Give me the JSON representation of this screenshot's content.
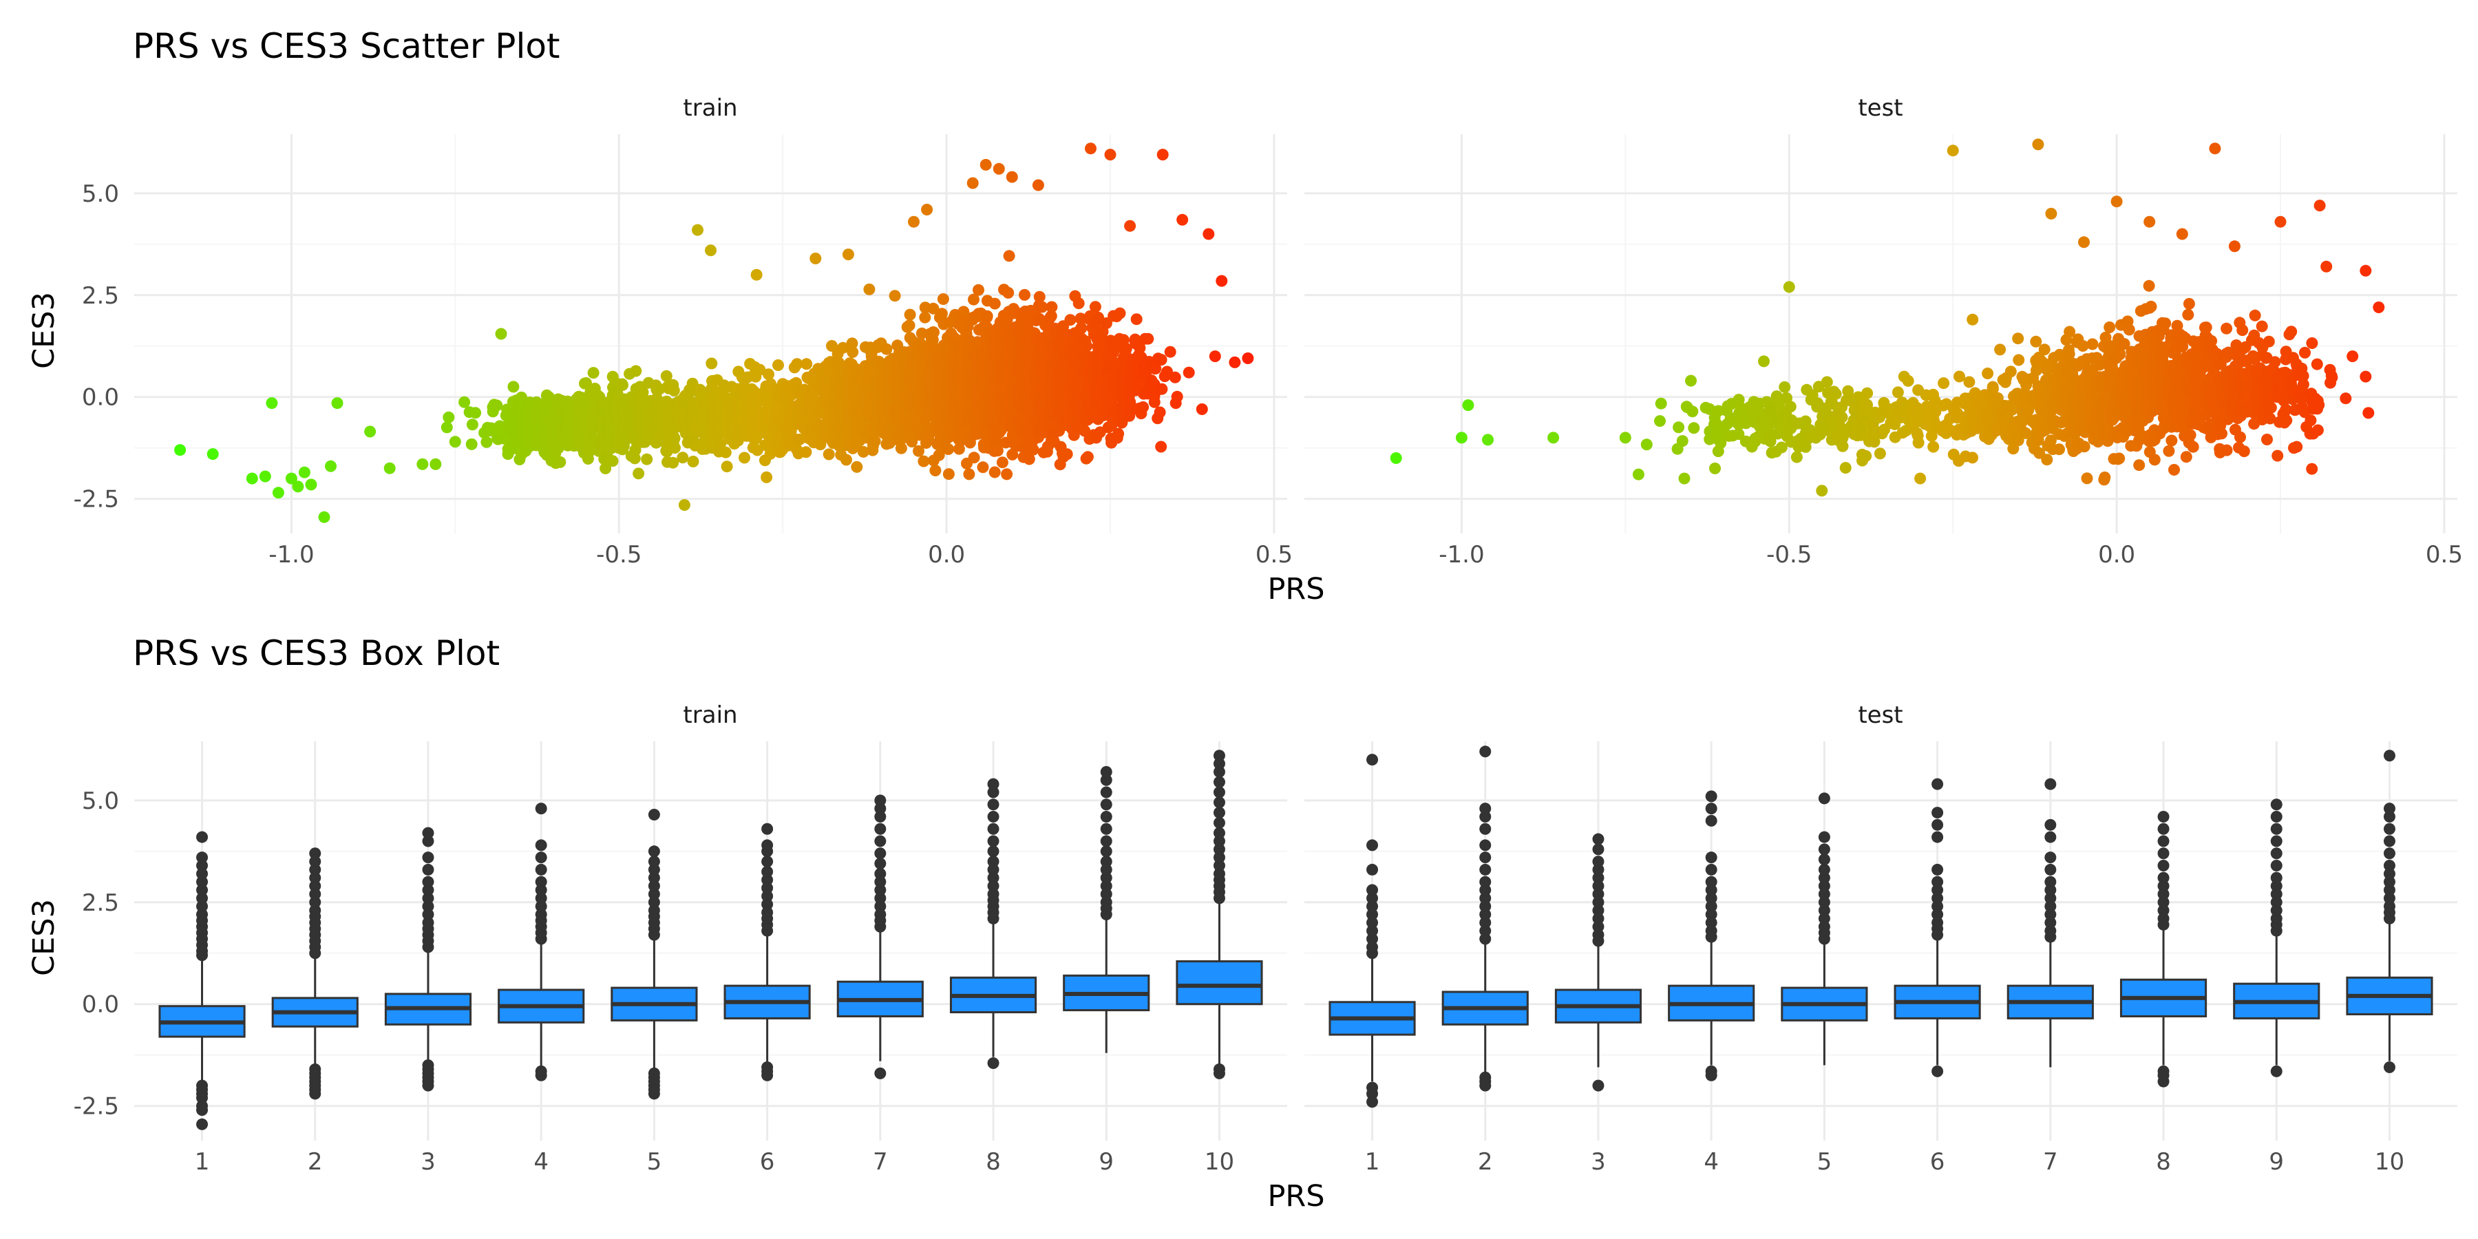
{
  "colors": {
    "low": "#3cff00",
    "mid": "#d4a800",
    "high": "#ff1e00",
    "box_fill": "#1e90ff",
    "box_line": "#333333",
    "grid_major": "#ebebeb",
    "grid_minor": "#f5f5f5"
  },
  "chart_data": [
    {
      "type": "scatter",
      "title": "PRS vs CES3 Scatter Plot",
      "xlabel": "PRS",
      "ylabel": "CES3",
      "facets": [
        "train",
        "test"
      ],
      "xlim": [
        -1.24,
        0.52
      ],
      "ylim": [
        -3.35,
        6.45
      ],
      "xticks": [
        -1.0,
        -0.5,
        0.0,
        0.5
      ],
      "xtick_labels": [
        "-1.0",
        "-0.5",
        "0.0",
        "0.5"
      ],
      "yticks": [
        -2.5,
        0.0,
        2.5,
        5.0
      ],
      "ytick_labels": [
        "-2.5",
        "0.0",
        "2.5",
        "5.0"
      ],
      "grid": true,
      "color_scale": "continuous by PRS (green to red)",
      "point_density": {
        "train": [
          {
            "x": -0.6,
            "y": -0.7,
            "sx": 0.05,
            "sy": 0.35,
            "n": 420
          },
          {
            "x": -0.45,
            "y": -0.55,
            "sx": 0.06,
            "sy": 0.4,
            "n": 420
          },
          {
            "x": -0.28,
            "y": -0.45,
            "sx": 0.07,
            "sy": 0.45,
            "n": 450
          },
          {
            "x": -0.12,
            "y": -0.1,
            "sx": 0.05,
            "sy": 0.55,
            "n": 500
          },
          {
            "x": 0.0,
            "y": 0.25,
            "sx": 0.05,
            "sy": 0.75,
            "n": 650
          },
          {
            "x": 0.1,
            "y": 0.45,
            "sx": 0.05,
            "sy": 0.85,
            "n": 700
          },
          {
            "x": 0.2,
            "y": 0.4,
            "sx": 0.045,
            "sy": 0.75,
            "n": 450
          },
          {
            "x": 0.27,
            "y": 0.5,
            "sx": 0.03,
            "sy": 0.6,
            "n": 120
          }
        ],
        "test": [
          {
            "x": -0.55,
            "y": -0.7,
            "sx": 0.06,
            "sy": 0.35,
            "n": 110
          },
          {
            "x": -0.4,
            "y": -0.55,
            "sx": 0.07,
            "sy": 0.4,
            "n": 140
          },
          {
            "x": -0.2,
            "y": -0.45,
            "sx": 0.06,
            "sy": 0.45,
            "n": 170
          },
          {
            "x": -0.05,
            "y": 0.0,
            "sx": 0.05,
            "sy": 0.65,
            "n": 340
          },
          {
            "x": 0.07,
            "y": 0.25,
            "sx": 0.05,
            "sy": 0.75,
            "n": 380
          },
          {
            "x": 0.17,
            "y": 0.2,
            "sx": 0.05,
            "sy": 0.65,
            "n": 260
          },
          {
            "x": 0.26,
            "y": 0.1,
            "sx": 0.035,
            "sy": 0.55,
            "n": 90
          }
        ]
      },
      "extreme_points": {
        "train": [
          [
            -1.17,
            -1.3
          ],
          [
            -1.12,
            -1.4
          ],
          [
            -1.06,
            -2.0
          ],
          [
            -1.04,
            -1.95
          ],
          [
            -1.02,
            -2.35
          ],
          [
            -1.0,
            -2.0
          ],
          [
            -0.99,
            -2.2
          ],
          [
            -0.97,
            -2.15
          ],
          [
            -0.98,
            -1.85
          ],
          [
            -1.03,
            -0.15
          ],
          [
            -0.93,
            -0.15
          ],
          [
            -0.94,
            -1.7
          ],
          [
            -0.95,
            -2.95
          ],
          [
            -0.88,
            -0.85
          ],
          [
            -0.85,
            -1.75
          ],
          [
            -0.8,
            -1.65
          ],
          [
            -0.78,
            -1.65
          ],
          [
            -0.76,
            -0.5
          ],
          [
            -0.75,
            -1.1
          ],
          [
            -0.68,
            1.55
          ],
          [
            -0.42,
            -1.2
          ],
          [
            -0.4,
            -2.65
          ],
          [
            -0.38,
            4.1
          ],
          [
            -0.36,
            3.6
          ],
          [
            -0.29,
            3.0
          ],
          [
            -0.2,
            3.4
          ],
          [
            -0.15,
            3.5
          ],
          [
            -0.05,
            4.3
          ],
          [
            -0.03,
            4.6
          ],
          [
            0.04,
            5.25
          ],
          [
            0.06,
            5.7
          ],
          [
            0.08,
            5.6
          ],
          [
            0.1,
            5.4
          ],
          [
            0.14,
            5.2
          ],
          [
            0.22,
            6.1
          ],
          [
            0.25,
            5.95
          ],
          [
            0.28,
            4.2
          ],
          [
            0.33,
            5.95
          ],
          [
            0.36,
            4.35
          ],
          [
            0.4,
            4.0
          ],
          [
            0.42,
            2.85
          ],
          [
            0.41,
            1.0
          ],
          [
            0.44,
            0.85
          ],
          [
            0.46,
            0.95
          ],
          [
            0.37,
            0.6
          ],
          [
            0.39,
            -0.3
          ],
          [
            0.35,
            -0.15
          ],
          [
            0.3,
            -0.25
          ]
        ],
        "test": [
          [
            -1.1,
            -1.5
          ],
          [
            -1.0,
            -1.0
          ],
          [
            -0.99,
            -0.2
          ],
          [
            -0.96,
            -1.05
          ],
          [
            -0.86,
            -1.0
          ],
          [
            -0.75,
            -1.0
          ],
          [
            -0.73,
            -1.9
          ],
          [
            -0.66,
            -2.0
          ],
          [
            -0.65,
            0.4
          ],
          [
            -0.5,
            2.7
          ],
          [
            -0.45,
            -2.3
          ],
          [
            -0.3,
            -2.0
          ],
          [
            -0.25,
            6.05
          ],
          [
            -0.22,
            1.9
          ],
          [
            -0.12,
            6.2
          ],
          [
            -0.1,
            4.5
          ],
          [
            -0.05,
            3.8
          ],
          [
            0.0,
            4.8
          ],
          [
            0.05,
            4.3
          ],
          [
            0.1,
            4.0
          ],
          [
            0.15,
            6.1
          ],
          [
            0.18,
            3.7
          ],
          [
            0.25,
            4.3
          ],
          [
            0.31,
            4.7
          ],
          [
            0.32,
            3.2
          ],
          [
            0.38,
            3.1
          ],
          [
            0.4,
            2.2
          ],
          [
            0.36,
            1.0
          ],
          [
            0.38,
            0.5
          ],
          [
            0.3,
            -0.9
          ]
        ]
      }
    },
    {
      "type": "box",
      "title": "PRS vs CES3 Box Plot",
      "xlabel": "PRS",
      "ylabel": "CES3",
      "facets": [
        "train",
        "test"
      ],
      "categories": [
        "1",
        "2",
        "3",
        "4",
        "5",
        "6",
        "7",
        "8",
        "9",
        "10"
      ],
      "ylim": [
        -3.35,
        6.45
      ],
      "yticks": [
        -2.5,
        0.0,
        2.5,
        5.0
      ],
      "ytick_labels": [
        "-2.5",
        "0.0",
        "2.5",
        "5.0"
      ],
      "grid": true,
      "boxes": {
        "train": [
          {
            "q1": -0.8,
            "median": -0.45,
            "q3": -0.05,
            "whislo": -1.9,
            "whishi": 1.1,
            "out_lo": [
              -2.0,
              -2.1,
              -2.2,
              -2.3,
              -2.5,
              -2.6,
              -2.95
            ],
            "out_hi": [
              1.2,
              1.3,
              1.45,
              1.6,
              1.75,
              1.9,
              2.05,
              2.2,
              2.4,
              2.6,
              2.8,
              3.0,
              3.2,
              3.4,
              3.6,
              4.1
            ]
          },
          {
            "q1": -0.55,
            "median": -0.2,
            "q3": 0.15,
            "whislo": -1.5,
            "whishi": 1.15,
            "out_lo": [
              -1.6,
              -1.7,
              -1.8,
              -1.9,
              -2.0,
              -2.1,
              -2.2
            ],
            "out_hi": [
              1.25,
              1.4,
              1.55,
              1.7,
              1.85,
              2.0,
              2.15,
              2.3,
              2.5,
              2.7,
              2.9,
              3.1,
              3.3,
              3.5,
              3.7
            ]
          },
          {
            "q1": -0.5,
            "median": -0.1,
            "q3": 0.25,
            "whislo": -1.4,
            "whishi": 1.3,
            "out_lo": [
              -1.5,
              -1.6,
              -1.7,
              -1.8,
              -1.9,
              -2.0
            ],
            "out_hi": [
              1.4,
              1.55,
              1.7,
              1.85,
              2.0,
              2.2,
              2.4,
              2.6,
              2.8,
              3.0,
              3.3,
              3.6,
              4.0,
              4.2
            ]
          },
          {
            "q1": -0.45,
            "median": -0.05,
            "q3": 0.35,
            "whislo": -1.55,
            "whishi": 1.5,
            "out_lo": [
              -1.65,
              -1.75
            ],
            "out_hi": [
              1.6,
              1.75,
              1.9,
              2.05,
              2.2,
              2.4,
              2.6,
              2.8,
              3.0,
              3.3,
              3.6,
              3.9,
              4.8
            ]
          },
          {
            "q1": -0.4,
            "median": 0.0,
            "q3": 0.4,
            "whislo": -1.6,
            "whishi": 1.6,
            "out_lo": [
              -1.7,
              -1.8,
              -1.9,
              -2.0,
              -2.1,
              -2.2
            ],
            "out_hi": [
              1.7,
              1.85,
              2.0,
              2.15,
              2.3,
              2.5,
              2.7,
              2.9,
              3.1,
              3.3,
              3.5,
              3.75,
              4.65
            ]
          },
          {
            "q1": -0.35,
            "median": 0.05,
            "q3": 0.45,
            "whislo": -1.45,
            "whishi": 1.7,
            "out_lo": [
              -1.55,
              -1.65,
              -1.75
            ],
            "out_hi": [
              1.8,
              1.95,
              2.1,
              2.25,
              2.45,
              2.65,
              2.85,
              3.05,
              3.25,
              3.5,
              3.75,
              3.9,
              4.3
            ]
          },
          {
            "q1": -0.3,
            "median": 0.1,
            "q3": 0.55,
            "whislo": -1.4,
            "whishi": 1.8,
            "out_lo": [
              -1.7
            ],
            "out_hi": [
              1.9,
              2.05,
              2.2,
              2.4,
              2.6,
              2.8,
              3.0,
              3.2,
              3.45,
              3.7,
              4.0,
              4.3,
              4.6,
              4.8,
              5.0
            ]
          },
          {
            "q1": -0.2,
            "median": 0.2,
            "q3": 0.65,
            "whislo": -1.3,
            "whishi": 2.0,
            "out_lo": [
              -1.45
            ],
            "out_hi": [
              2.1,
              2.25,
              2.4,
              2.55,
              2.7,
              2.9,
              3.1,
              3.3,
              3.5,
              3.75,
              4.0,
              4.3,
              4.6,
              4.9,
              5.2,
              5.4
            ]
          },
          {
            "q1": -0.15,
            "median": 0.25,
            "q3": 0.7,
            "whislo": -1.2,
            "whishi": 2.1,
            "out_lo": [],
            "out_hi": [
              2.2,
              2.35,
              2.5,
              2.7,
              2.9,
              3.1,
              3.3,
              3.5,
              3.75,
              4.0,
              4.3,
              4.6,
              4.9,
              5.2,
              5.5,
              5.7
            ]
          },
          {
            "q1": 0.0,
            "median": 0.45,
            "q3": 1.05,
            "whislo": -1.5,
            "whishi": 2.5,
            "out_lo": [
              -1.6,
              -1.7
            ],
            "out_hi": [
              2.6,
              2.75,
              2.9,
              3.05,
              3.2,
              3.4,
              3.6,
              3.8,
              4.0,
              4.2,
              4.45,
              4.7,
              4.95,
              5.2,
              5.45,
              5.7,
              5.9,
              6.1
            ]
          }
        ],
        "test": [
          {
            "q1": -0.75,
            "median": -0.35,
            "q3": 0.05,
            "whislo": -1.9,
            "whishi": 1.15,
            "out_lo": [
              -2.05,
              -2.2,
              -2.4
            ],
            "out_hi": [
              1.25,
              1.4,
              1.6,
              1.8,
              2.0,
              2.2,
              2.4,
              2.6,
              2.8,
              3.3,
              3.9,
              6.0
            ]
          },
          {
            "q1": -0.5,
            "median": -0.1,
            "q3": 0.3,
            "whislo": -1.7,
            "whishi": 1.5,
            "out_lo": [
              -1.8,
              -1.9,
              -2.0
            ],
            "out_hi": [
              1.6,
              1.8,
              2.0,
              2.2,
              2.4,
              2.6,
              2.8,
              3.0,
              3.3,
              3.6,
              3.9,
              4.3,
              4.6,
              4.8,
              6.2
            ]
          },
          {
            "q1": -0.45,
            "median": -0.05,
            "q3": 0.35,
            "whislo": -1.55,
            "whishi": 1.45,
            "out_lo": [
              -2.0
            ],
            "out_hi": [
              1.55,
              1.7,
              1.9,
              2.1,
              2.3,
              2.5,
              2.7,
              2.9,
              3.1,
              3.3,
              3.5,
              3.8,
              4.05
            ]
          },
          {
            "q1": -0.4,
            "median": 0.0,
            "q3": 0.45,
            "whislo": -1.5,
            "whishi": 1.55,
            "out_lo": [
              -1.65,
              -1.75
            ],
            "out_hi": [
              1.65,
              1.8,
              2.0,
              2.2,
              2.4,
              2.6,
              2.8,
              3.0,
              3.3,
              3.6,
              4.5,
              4.8,
              5.1
            ]
          },
          {
            "q1": -0.4,
            "median": 0.0,
            "q3": 0.4,
            "whislo": -1.5,
            "whishi": 1.5,
            "out_lo": [],
            "out_hi": [
              1.6,
              1.75,
              1.9,
              2.1,
              2.3,
              2.5,
              2.7,
              2.9,
              3.1,
              3.3,
              3.55,
              3.8,
              4.1,
              5.05
            ]
          },
          {
            "q1": -0.35,
            "median": 0.05,
            "q3": 0.45,
            "whislo": -1.5,
            "whishi": 1.6,
            "out_lo": [
              -1.65
            ],
            "out_hi": [
              1.7,
              1.85,
              2.0,
              2.2,
              2.4,
              2.6,
              2.8,
              3.0,
              3.3,
              4.1,
              4.4,
              4.7,
              5.4
            ]
          },
          {
            "q1": -0.35,
            "median": 0.05,
            "q3": 0.45,
            "whislo": -1.55,
            "whishi": 1.55,
            "out_lo": [],
            "out_hi": [
              1.65,
              1.8,
              2.0,
              2.2,
              2.4,
              2.6,
              2.8,
              3.0,
              3.3,
              3.6,
              4.1,
              4.4,
              5.4
            ]
          },
          {
            "q1": -0.3,
            "median": 0.15,
            "q3": 0.6,
            "whislo": -1.5,
            "whishi": 1.85,
            "out_lo": [
              -1.65,
              -1.75,
              -1.9
            ],
            "out_hi": [
              1.95,
              2.1,
              2.3,
              2.5,
              2.7,
              2.9,
              3.1,
              3.4,
              3.7,
              4.0,
              4.3,
              4.6
            ]
          },
          {
            "q1": -0.35,
            "median": 0.05,
            "q3": 0.5,
            "whislo": -1.5,
            "whishi": 1.7,
            "out_lo": [
              -1.65
            ],
            "out_hi": [
              1.8,
              1.95,
              2.1,
              2.3,
              2.5,
              2.7,
              2.9,
              3.1,
              3.4,
              3.7,
              4.0,
              4.3,
              4.6,
              4.9
            ]
          },
          {
            "q1": -0.25,
            "median": 0.2,
            "q3": 0.65,
            "whislo": -1.4,
            "whishi": 2.0,
            "out_lo": [
              -1.55
            ],
            "out_hi": [
              2.1,
              2.25,
              2.4,
              2.6,
              2.8,
              3.0,
              3.2,
              3.4,
              3.7,
              4.0,
              4.3,
              4.6,
              4.8,
              6.1
            ]
          }
        ]
      }
    }
  ]
}
